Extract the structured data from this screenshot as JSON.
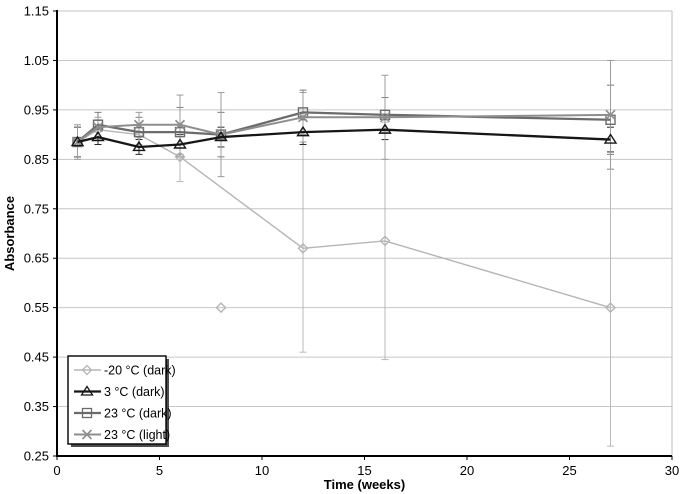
{
  "chart_data": {
    "type": "line",
    "title": "",
    "xlabel": "Time (weeks)",
    "ylabel": "Absorbance",
    "xlim": [
      0,
      30
    ],
    "ylim": [
      0.25,
      1.15
    ],
    "xticks": [
      0,
      5,
      10,
      15,
      20,
      25,
      30
    ],
    "yticks": [
      0.25,
      0.35,
      0.45,
      0.55,
      0.65,
      0.75,
      0.85,
      0.95,
      1.05,
      1.15
    ],
    "grid": "horizontal",
    "legend_position": "bottom-left",
    "x": [
      1,
      2,
      4,
      6,
      8,
      12,
      16,
      27
    ],
    "series": [
      {
        "name": "-20 °C (dark)",
        "marker": "diamond",
        "color": "#b5b5b5",
        "err_color": "#b9b9b9",
        "line_width": 1.4,
        "values": [
          0.885,
          0.91,
          0.9,
          0.855,
          null,
          0.67,
          0.685,
          0.55
        ],
        "err": [
          0.03,
          0.02,
          0.02,
          0.05,
          null,
          0.21,
          0.24,
          0.28
        ],
        "extra_points": [
          {
            "x": 8,
            "y": 0.55
          }
        ]
      },
      {
        "name": "3 °C (dark)",
        "marker": "triangle",
        "color": "#161616",
        "err_color": "#2a2a2a",
        "line_width": 2.3,
        "values": [
          0.885,
          0.895,
          0.875,
          0.88,
          0.895,
          0.905,
          0.91,
          0.89
        ],
        "err": [
          0.03,
          0.015,
          0.015,
          0.02,
          0.02,
          0.025,
          0.02,
          0.025
        ],
        "extra_points": []
      },
      {
        "name": "23 °C (dark)",
        "marker": "square",
        "color": "#6b6b6b",
        "err_color": "#7d7d7d",
        "line_width": 2.3,
        "values": [
          0.885,
          0.92,
          0.905,
          0.905,
          0.9,
          0.945,
          0.94,
          0.93
        ],
        "err": [
          0.03,
          0.025,
          0.03,
          0.05,
          0.045,
          0.045,
          0.035,
          0.07
        ],
        "extra_points": []
      },
      {
        "name": "23 °C (light)",
        "marker": "x",
        "color": "#8e8e8e",
        "err_color": "#9c9c9c",
        "line_width": 2.0,
        "values": [
          0.885,
          0.915,
          0.92,
          0.92,
          0.9,
          0.935,
          0.935,
          0.94
        ],
        "err": [
          0.035,
          0.02,
          0.025,
          0.06,
          0.085,
          0.05,
          0.085,
          0.11
        ],
        "extra_points": []
      }
    ],
    "colors": {
      "gridline": "#c6c6c6",
      "plot_border": "#bdbdbd",
      "axis": "#000000",
      "legend_border": "#000000",
      "legend_shadow": "#4d4d4d",
      "background": "#ffffff"
    }
  }
}
